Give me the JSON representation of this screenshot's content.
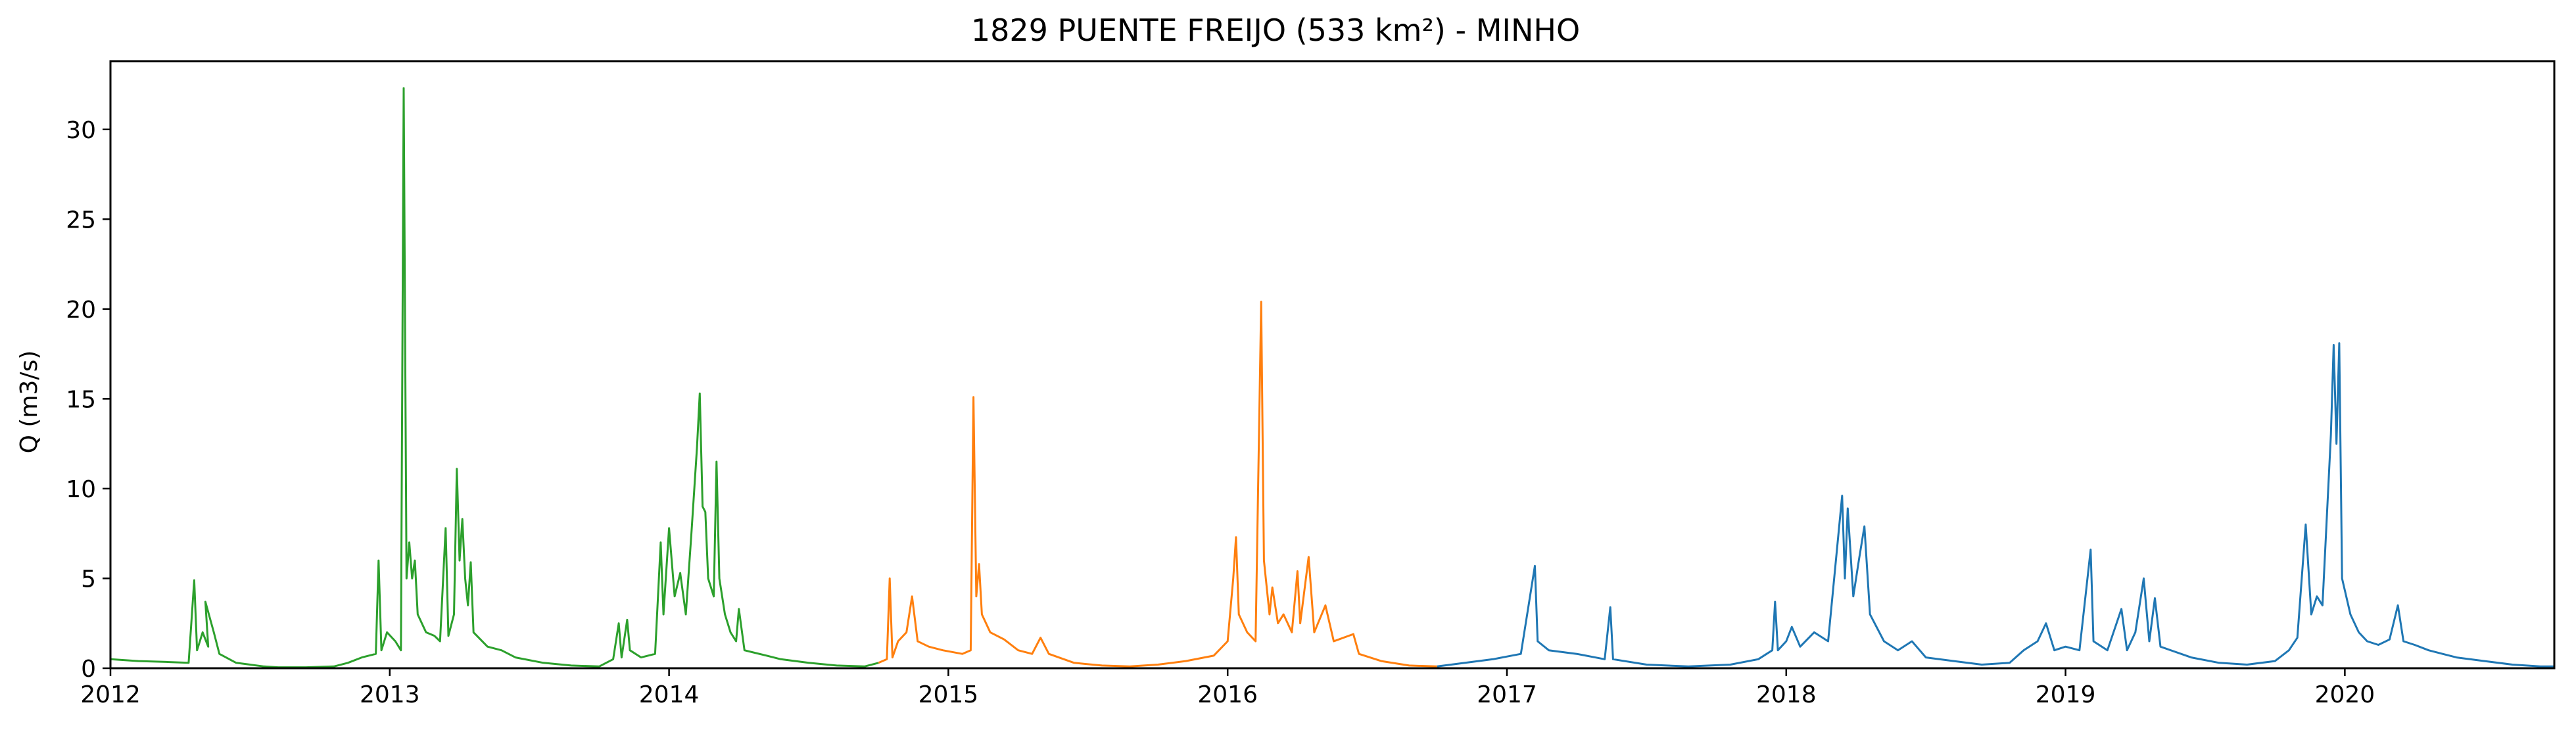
{
  "chart_data": {
    "type": "line",
    "title": "1829 PUENTE FREIJO (533 km²) - MINHO",
    "xlabel": "",
    "ylabel": "Q (m3/s)",
    "xlim": [
      2012.0,
      2020.75
    ],
    "ylim": [
      0,
      33.8
    ],
    "x_ticks": [
      "2012",
      "2013",
      "2014",
      "2015",
      "2016",
      "2017",
      "2018",
      "2019",
      "2020"
    ],
    "y_ticks": [
      0,
      5,
      10,
      15,
      20,
      25,
      30
    ],
    "grid": false,
    "legend": "none",
    "series": [
      {
        "color": "#2ca02c",
        "points": [
          [
            2012.0,
            0.5
          ],
          [
            2012.1,
            0.4
          ],
          [
            2012.2,
            0.35
          ],
          [
            2012.28,
            0.3
          ],
          [
            2012.3,
            4.9
          ],
          [
            2012.31,
            1.0
          ],
          [
            2012.33,
            2.0
          ],
          [
            2012.35,
            1.2
          ],
          [
            2012.34,
            3.7
          ],
          [
            2012.37,
            2.0
          ],
          [
            2012.39,
            0.8
          ],
          [
            2012.45,
            0.3
          ],
          [
            2012.5,
            0.2
          ],
          [
            2012.55,
            0.1
          ],
          [
            2012.6,
            0.05
          ],
          [
            2012.7,
            0.05
          ],
          [
            2012.8,
            0.1
          ],
          [
            2012.85,
            0.3
          ],
          [
            2012.9,
            0.6
          ],
          [
            2012.95,
            0.8
          ],
          [
            2012.96,
            6.0
          ],
          [
            2012.97,
            1.0
          ],
          [
            2012.99,
            2.0
          ],
          [
            2013.02,
            1.5
          ],
          [
            2013.04,
            1.0
          ],
          [
            2013.05,
            32.3
          ],
          [
            2013.06,
            5.0
          ],
          [
            2013.07,
            7.0
          ],
          [
            2013.08,
            5.0
          ],
          [
            2013.09,
            6.0
          ],
          [
            2013.1,
            3.0
          ],
          [
            2013.13,
            2.0
          ],
          [
            2013.16,
            1.8
          ],
          [
            2013.18,
            1.5
          ],
          [
            2013.2,
            7.8
          ],
          [
            2013.21,
            1.8
          ],
          [
            2013.23,
            3.0
          ],
          [
            2013.24,
            11.1
          ],
          [
            2013.25,
            6.0
          ],
          [
            2013.26,
            8.3
          ],
          [
            2013.27,
            5.0
          ],
          [
            2013.28,
            3.5
          ],
          [
            2013.29,
            5.9
          ],
          [
            2013.3,
            2.0
          ],
          [
            2013.35,
            1.2
          ],
          [
            2013.4,
            1.0
          ],
          [
            2013.45,
            0.6
          ],
          [
            2013.55,
            0.3
          ],
          [
            2013.65,
            0.15
          ],
          [
            2013.75,
            0.1
          ],
          [
            2013.8,
            0.5
          ],
          [
            2013.82,
            2.5
          ],
          [
            2013.83,
            0.6
          ],
          [
            2013.85,
            2.7
          ],
          [
            2013.86,
            1.0
          ],
          [
            2013.9,
            0.6
          ],
          [
            2013.95,
            0.8
          ],
          [
            2013.97,
            7.0
          ],
          [
            2013.98,
            3.0
          ],
          [
            2014.0,
            7.8
          ],
          [
            2014.02,
            4.0
          ],
          [
            2014.04,
            5.3
          ],
          [
            2014.06,
            3.0
          ],
          [
            2014.08,
            7.5
          ],
          [
            2014.1,
            12.3
          ],
          [
            2014.11,
            15.3
          ],
          [
            2014.12,
            9.0
          ],
          [
            2014.13,
            8.7
          ],
          [
            2014.14,
            5.0
          ],
          [
            2014.16,
            4.0
          ],
          [
            2014.17,
            11.5
          ],
          [
            2014.18,
            5.0
          ],
          [
            2014.2,
            3.0
          ],
          [
            2014.22,
            2.0
          ],
          [
            2014.24,
            1.5
          ],
          [
            2014.25,
            3.3
          ],
          [
            2014.27,
            1.0
          ],
          [
            2014.35,
            0.7
          ],
          [
            2014.4,
            0.5
          ],
          [
            2014.5,
            0.3
          ],
          [
            2014.6,
            0.15
          ],
          [
            2014.7,
            0.1
          ],
          [
            2014.75,
            0.3
          ]
        ]
      },
      {
        "color": "#ff7f0e",
        "points": [
          [
            2014.75,
            0.3
          ],
          [
            2014.78,
            0.5
          ],
          [
            2014.79,
            5.0
          ],
          [
            2014.8,
            0.6
          ],
          [
            2014.82,
            1.5
          ],
          [
            2014.85,
            2.0
          ],
          [
            2014.87,
            4.0
          ],
          [
            2014.89,
            1.5
          ],
          [
            2014.93,
            1.2
          ],
          [
            2014.98,
            1.0
          ],
          [
            2015.05,
            0.8
          ],
          [
            2015.08,
            1.0
          ],
          [
            2015.09,
            15.1
          ],
          [
            2015.1,
            4.0
          ],
          [
            2015.11,
            5.8
          ],
          [
            2015.12,
            3.0
          ],
          [
            2015.15,
            2.0
          ],
          [
            2015.2,
            1.6
          ],
          [
            2015.25,
            1.0
          ],
          [
            2015.3,
            0.8
          ],
          [
            2015.33,
            1.7
          ],
          [
            2015.36,
            0.8
          ],
          [
            2015.45,
            0.3
          ],
          [
            2015.55,
            0.15
          ],
          [
            2015.65,
            0.1
          ],
          [
            2015.75,
            0.2
          ],
          [
            2015.85,
            0.4
          ],
          [
            2015.95,
            0.7
          ],
          [
            2016.0,
            1.5
          ],
          [
            2016.02,
            5.0
          ],
          [
            2016.03,
            7.3
          ],
          [
            2016.04,
            3.0
          ],
          [
            2016.07,
            2.0
          ],
          [
            2016.1,
            1.5
          ],
          [
            2016.12,
            20.4
          ],
          [
            2016.13,
            6.0
          ],
          [
            2016.15,
            3.0
          ],
          [
            2016.16,
            4.5
          ],
          [
            2016.18,
            2.5
          ],
          [
            2016.2,
            3.0
          ],
          [
            2016.23,
            2.0
          ],
          [
            2016.25,
            5.4
          ],
          [
            2016.26,
            2.5
          ],
          [
            2016.29,
            6.2
          ],
          [
            2016.31,
            2.0
          ],
          [
            2016.35,
            3.5
          ],
          [
            2016.38,
            1.5
          ],
          [
            2016.45,
            1.9
          ],
          [
            2016.47,
            0.8
          ],
          [
            2016.55,
            0.4
          ],
          [
            2016.65,
            0.15
          ],
          [
            2016.75,
            0.1
          ]
        ]
      },
      {
        "color": "#1f77b4",
        "points": [
          [
            2016.75,
            0.1
          ],
          [
            2016.85,
            0.3
          ],
          [
            2016.95,
            0.5
          ],
          [
            2017.05,
            0.8
          ],
          [
            2017.1,
            5.7
          ],
          [
            2017.11,
            1.5
          ],
          [
            2017.15,
            1.0
          ],
          [
            2017.25,
            0.8
          ],
          [
            2017.35,
            0.5
          ],
          [
            2017.37,
            3.4
          ],
          [
            2017.38,
            0.5
          ],
          [
            2017.5,
            0.2
          ],
          [
            2017.65,
            0.1
          ],
          [
            2017.8,
            0.2
          ],
          [
            2017.9,
            0.5
          ],
          [
            2017.95,
            1.0
          ],
          [
            2017.96,
            3.7
          ],
          [
            2017.97,
            1.0
          ],
          [
            2018.0,
            1.5
          ],
          [
            2018.02,
            2.3
          ],
          [
            2018.05,
            1.2
          ],
          [
            2018.1,
            2.0
          ],
          [
            2018.15,
            1.5
          ],
          [
            2018.2,
            9.6
          ],
          [
            2018.21,
            5.0
          ],
          [
            2018.22,
            8.9
          ],
          [
            2018.24,
            4.0
          ],
          [
            2018.26,
            6.0
          ],
          [
            2018.28,
            7.9
          ],
          [
            2018.3,
            3.0
          ],
          [
            2018.35,
            1.5
          ],
          [
            2018.4,
            1.0
          ],
          [
            2018.45,
            1.5
          ],
          [
            2018.5,
            0.6
          ],
          [
            2018.6,
            0.4
          ],
          [
            2018.7,
            0.2
          ],
          [
            2018.8,
            0.3
          ],
          [
            2018.85,
            1.0
          ],
          [
            2018.9,
            1.5
          ],
          [
            2018.93,
            2.5
          ],
          [
            2018.96,
            1.0
          ],
          [
            2019.0,
            1.2
          ],
          [
            2019.05,
            1.0
          ],
          [
            2019.09,
            6.6
          ],
          [
            2019.1,
            1.5
          ],
          [
            2019.15,
            1.0
          ],
          [
            2019.2,
            3.3
          ],
          [
            2019.22,
            1.0
          ],
          [
            2019.25,
            2.0
          ],
          [
            2019.28,
            5.0
          ],
          [
            2019.3,
            1.5
          ],
          [
            2019.32,
            3.9
          ],
          [
            2019.34,
            1.2
          ],
          [
            2019.45,
            0.6
          ],
          [
            2019.55,
            0.3
          ],
          [
            2019.65,
            0.2
          ],
          [
            2019.75,
            0.4
          ],
          [
            2019.8,
            1.0
          ],
          [
            2019.83,
            1.7
          ],
          [
            2019.86,
            8.0
          ],
          [
            2019.88,
            3.0
          ],
          [
            2019.9,
            4.0
          ],
          [
            2019.92,
            3.5
          ],
          [
            2019.95,
            13.0
          ],
          [
            2019.96,
            18.0
          ],
          [
            2019.97,
            12.5
          ],
          [
            2019.98,
            18.1
          ],
          [
            2019.99,
            5.0
          ],
          [
            2020.02,
            3.0
          ],
          [
            2020.05,
            2.0
          ],
          [
            2020.08,
            1.5
          ],
          [
            2020.12,
            1.3
          ],
          [
            2020.16,
            1.6
          ],
          [
            2020.19,
            3.5
          ],
          [
            2020.21,
            1.5
          ],
          [
            2020.25,
            1.3
          ],
          [
            2020.3,
            1.0
          ],
          [
            2020.35,
            0.8
          ],
          [
            2020.4,
            0.6
          ],
          [
            2020.5,
            0.4
          ],
          [
            2020.6,
            0.2
          ],
          [
            2020.7,
            0.1
          ],
          [
            2020.75,
            0.1
          ]
        ]
      }
    ]
  }
}
